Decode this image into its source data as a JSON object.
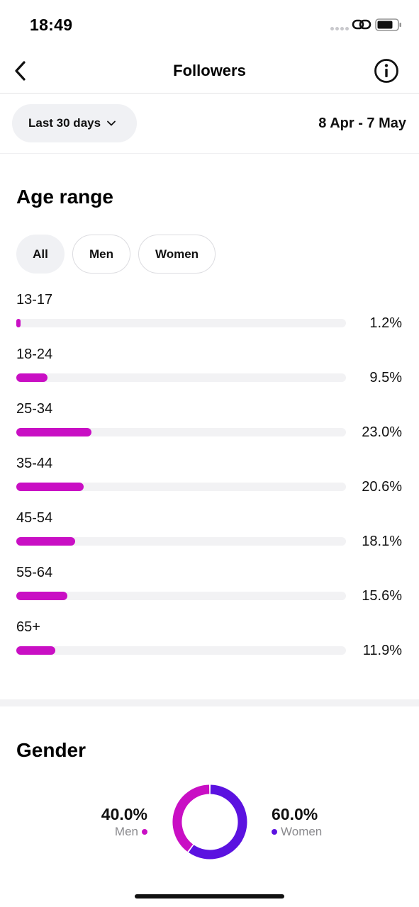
{
  "status_bar": {
    "time": "18:49"
  },
  "nav": {
    "title": "Followers"
  },
  "filter": {
    "range_label": "Last 30 days",
    "date_span": "8 Apr - 7 May"
  },
  "age": {
    "title": "Age range",
    "segments": {
      "all": "All",
      "men": "Men",
      "women": "Women",
      "selected": "All"
    },
    "rows": [
      {
        "label": "13-17",
        "pct": "1.2%",
        "value": 1.2
      },
      {
        "label": "18-24",
        "pct": "9.5%",
        "value": 9.5
      },
      {
        "label": "25-34",
        "pct": "23.0%",
        "value": 23.0
      },
      {
        "label": "35-44",
        "pct": "20.6%",
        "value": 20.6
      },
      {
        "label": "45-54",
        "pct": "18.1%",
        "value": 18.1
      },
      {
        "label": "55-64",
        "pct": "15.6%",
        "value": 15.6
      },
      {
        "label": "65+",
        "pct": "11.9%",
        "value": 11.9
      }
    ],
    "bar_color": "#c90fc4"
  },
  "gender": {
    "title": "Gender",
    "men": {
      "pct": "40.0%",
      "label": "Men",
      "value": 40.0,
      "color": "#c90fc4"
    },
    "women": {
      "pct": "60.0%",
      "label": "Women",
      "value": 60.0,
      "color": "#5b12e0"
    }
  },
  "icons": {
    "back": "chevron-left-icon",
    "info": "info-circle-icon",
    "dropdown": "chevron-down-icon",
    "link": "link-icon",
    "battery": "battery-icon"
  }
}
